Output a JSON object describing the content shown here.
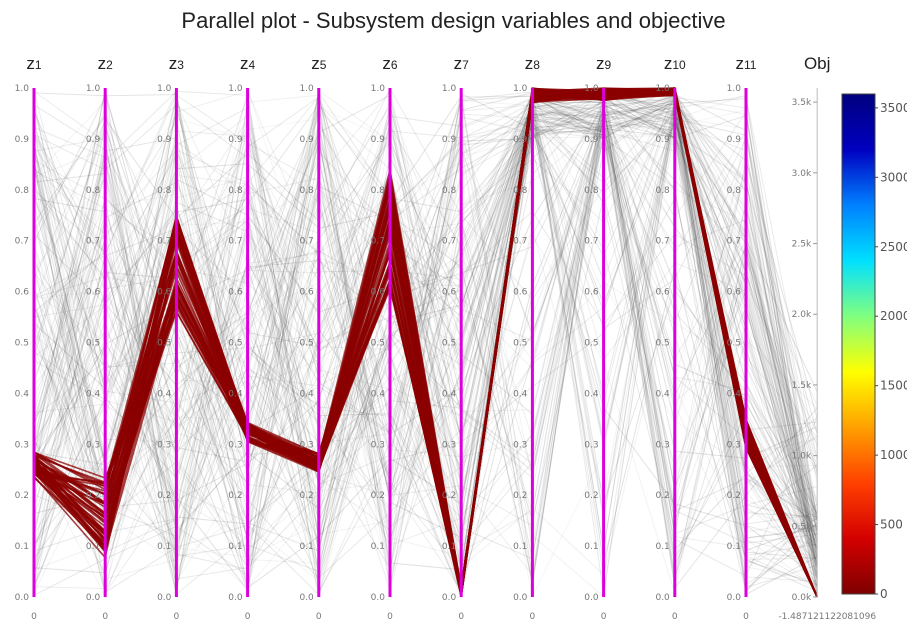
{
  "chart_data": {
    "type": "parallel",
    "title": "Parallel plot - Subsystem design variables and objective",
    "axes": [
      {
        "main": "z",
        "sub": "1"
      },
      {
        "main": "z",
        "sub": "2"
      },
      {
        "main": "z",
        "sub": "3"
      },
      {
        "main": "z",
        "sub": "4"
      },
      {
        "main": "z",
        "sub": "5"
      },
      {
        "main": "z",
        "sub": "6"
      },
      {
        "main": "z",
        "sub": "7"
      },
      {
        "main": "z",
        "sub": "8"
      },
      {
        "main": "z",
        "sub": "9"
      },
      {
        "main": "z",
        "sub": "10"
      },
      {
        "main": "z",
        "sub": "11"
      },
      {
        "main": "Obj",
        "sub": ""
      }
    ],
    "z_ticks": [
      "0.0",
      "0.1",
      "0.2",
      "0.3",
      "0.4",
      "0.5",
      "0.6",
      "0.7",
      "0.8",
      "0.9",
      "1.0"
    ],
    "z_range": [
      0,
      1
    ],
    "obj_ticks": [
      "0.0k",
      "0.5k",
      "1.0k",
      "1.5k",
      "2.0k",
      "2.5k",
      "3.0k",
      "3.5k"
    ],
    "obj_range": [
      0,
      3600
    ],
    "bottom_labels": [
      "0",
      "0",
      "0",
      "0",
      "0",
      "0",
      "0",
      "0",
      "0",
      "0",
      "0",
      "-1.487121122081096"
    ],
    "colorbar": {
      "ticks": [
        "0",
        "500",
        "1000",
        "1500",
        "2000",
        "2500",
        "3000",
        "3500"
      ],
      "range": [
        0,
        3600
      ],
      "colors": [
        "#7f0000",
        "#d40000",
        "#ff4000",
        "#ffa000",
        "#ffff00",
        "#80ff80",
        "#00e0ff",
        "#0080ff",
        "#0000c0",
        "#00007f"
      ]
    },
    "highlight": {
      "color": "#8b0000",
      "z_low": [
        0.235,
        0.075,
        0.56,
        0.305,
        0.245,
        0.6,
        0.0,
        0.97,
        0.975,
        0.985,
        0.29
      ],
      "z_high": [
        0.285,
        0.235,
        0.76,
        0.345,
        0.285,
        0.84,
        0.02,
        1.0,
        1.0,
        1.0,
        0.35
      ],
      "obj": 0
    },
    "background_lines_color": "#444444",
    "axis_color": "#dd00dd"
  }
}
